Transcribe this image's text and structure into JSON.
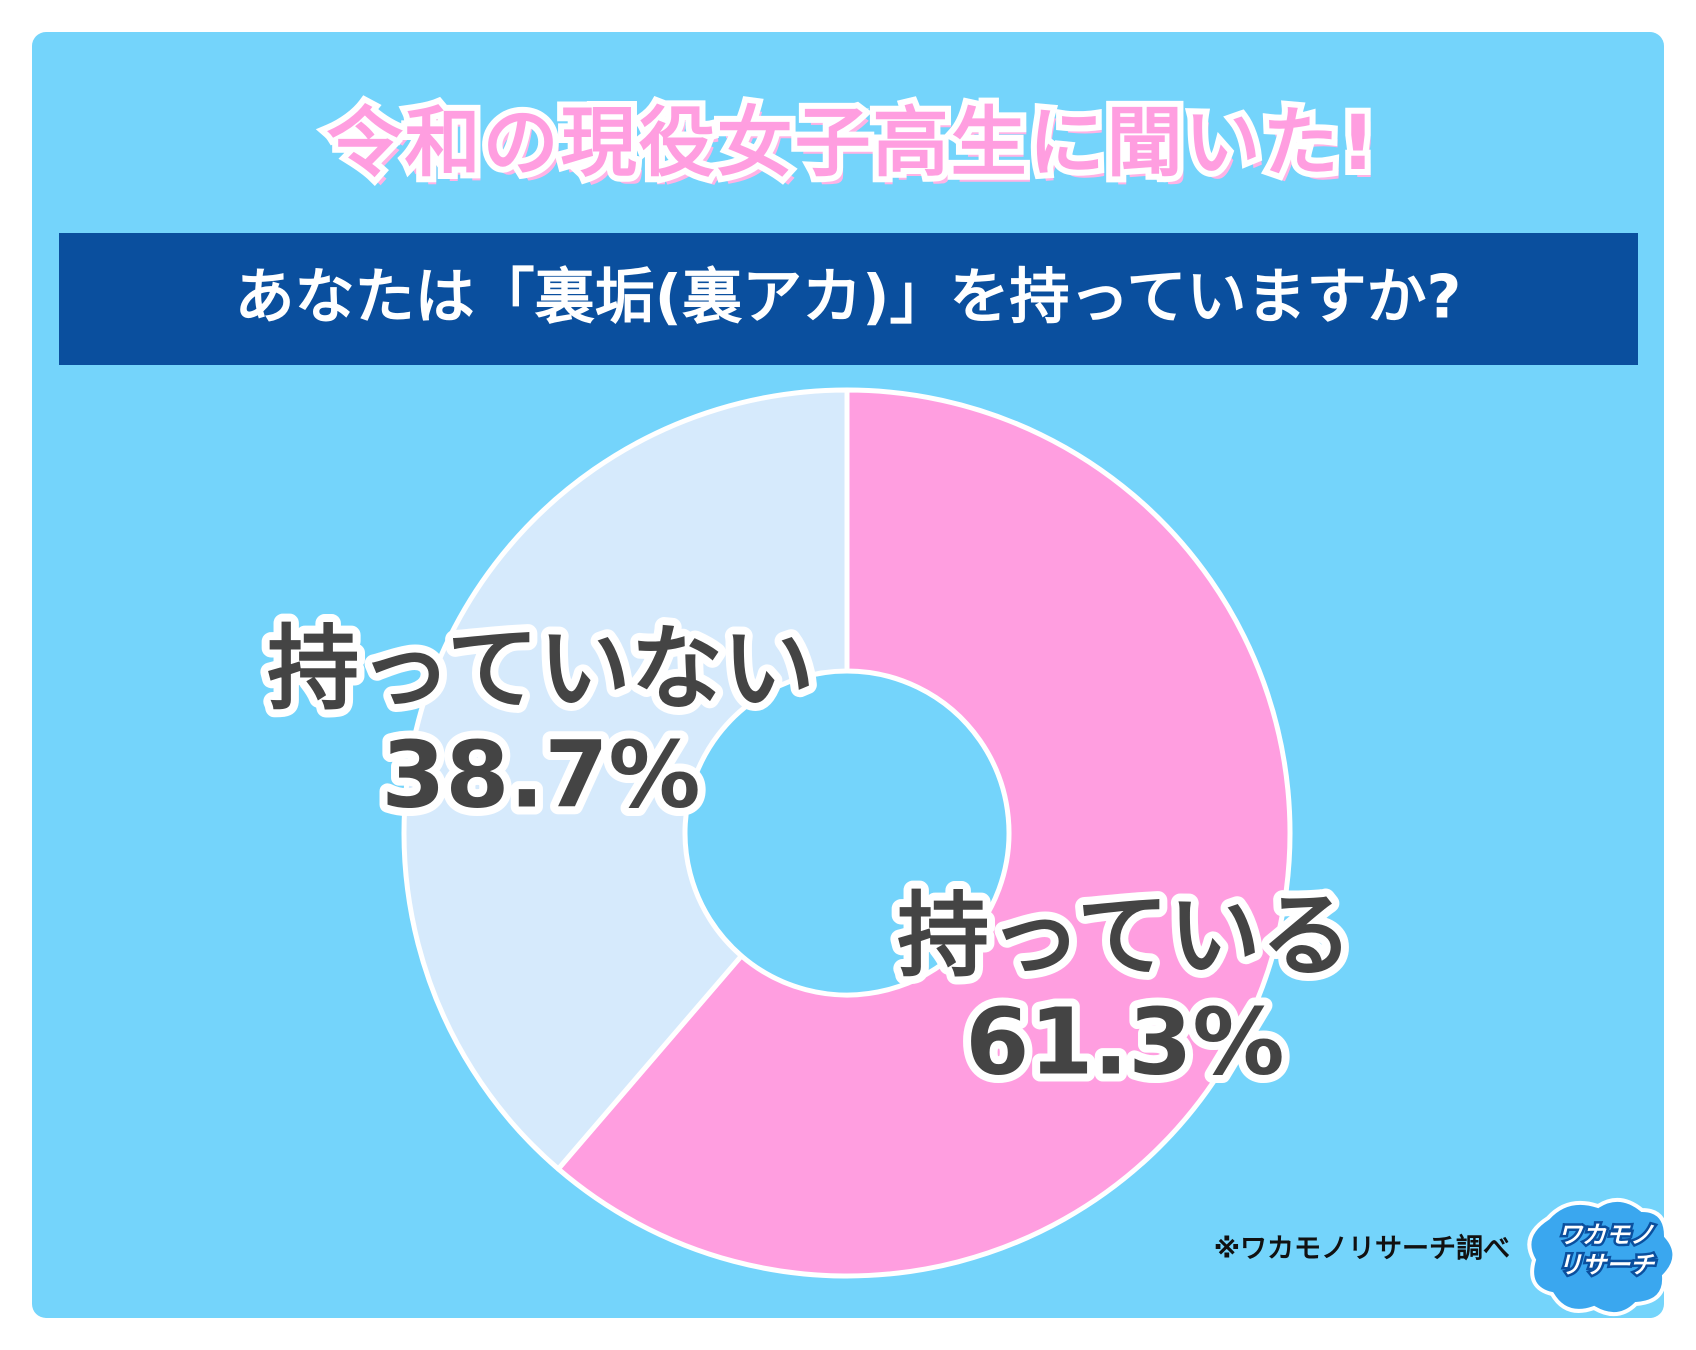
{
  "chart_data": {
    "type": "donut",
    "title": "令和の現役女子高生に聞いた!",
    "subtitle": "あなたは「裏垢(裏アカ)」を持っていますか?",
    "categories": [
      "持っている",
      "持っていない"
    ],
    "values": [
      61.3,
      38.7
    ],
    "value_labels": [
      "61.3%",
      "38.7%"
    ],
    "colors": [
      "#ff9ee0",
      "#d6eafc"
    ],
    "source": "※ワカモノリサーチ調べ",
    "logo": [
      "ワカモノ",
      "リサーチ"
    ]
  }
}
